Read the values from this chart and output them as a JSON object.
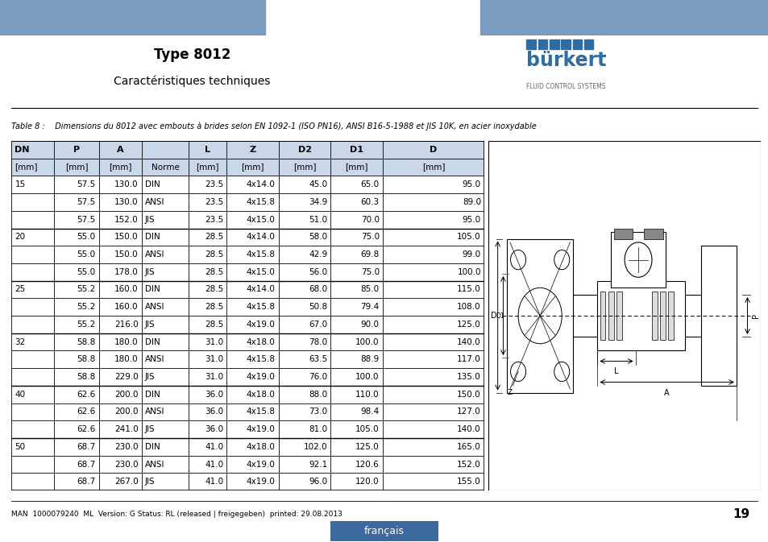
{
  "page_title": "Type 8012",
  "page_subtitle": "Caractéristiques techniques",
  "table_caption": "Table 8 :    Dimensions du 8012 avec embouts à brides selon EN 1092-1 (ISO PN16), ANSI B16-5-1988 et JIS 10K, en acier inoxydable",
  "col_headers": [
    "DN",
    "P",
    "A",
    "",
    "L",
    "Z",
    "D2",
    "D1",
    "D"
  ],
  "col_subheaders": [
    "[mm]",
    "[mm]",
    "[mm]",
    "Norme",
    "[mm]",
    "[mm]",
    "[mm]",
    "[mm]",
    "[mm]"
  ],
  "rows": [
    [
      "15",
      "57.5",
      "130.0",
      "DIN",
      "23.5",
      "4x14.0",
      "45.0",
      "65.0",
      "95.0"
    ],
    [
      "",
      "57.5",
      "130.0",
      "ANSI",
      "23.5",
      "4x15.8",
      "34.9",
      "60.3",
      "89.0"
    ],
    [
      "",
      "57.5",
      "152.0",
      "JIS",
      "23.5",
      "4x15.0",
      "51.0",
      "70.0",
      "95.0"
    ],
    [
      "20",
      "55.0",
      "150.0",
      "DIN",
      "28.5",
      "4x14.0",
      "58.0",
      "75.0",
      "105.0"
    ],
    [
      "",
      "55.0",
      "150.0",
      "ANSI",
      "28.5",
      "4x15.8",
      "42.9",
      "69.8",
      "99.0"
    ],
    [
      "",
      "55.0",
      "178.0",
      "JIS",
      "28.5",
      "4x15.0",
      "56.0",
      "75.0",
      "100.0"
    ],
    [
      "25",
      "55.2",
      "160.0",
      "DIN",
      "28.5",
      "4x14.0",
      "68.0",
      "85.0",
      "115.0"
    ],
    [
      "",
      "55.2",
      "160.0",
      "ANSI",
      "28.5",
      "4x15.8",
      "50.8",
      "79.4",
      "108.0"
    ],
    [
      "",
      "55.2",
      "216.0",
      "JIS",
      "28.5",
      "4x19.0",
      "67.0",
      "90.0",
      "125.0"
    ],
    [
      "32",
      "58.8",
      "180.0",
      "DIN",
      "31.0",
      "4x18.0",
      "78.0",
      "100.0",
      "140.0"
    ],
    [
      "",
      "58.8",
      "180.0",
      "ANSI",
      "31.0",
      "4x15.8",
      "63.5",
      "88.9",
      "117.0"
    ],
    [
      "",
      "58.8",
      "229.0",
      "JIS",
      "31.0",
      "4x19.0",
      "76.0",
      "100.0",
      "135.0"
    ],
    [
      "40",
      "62.6",
      "200.0",
      "DIN",
      "36.0",
      "4x18.0",
      "88.0",
      "110.0",
      "150.0"
    ],
    [
      "",
      "62.6",
      "200.0",
      "ANSI",
      "36.0",
      "4x15.8",
      "73.0",
      "98.4",
      "127.0"
    ],
    [
      "",
      "62.6",
      "241.0",
      "JIS",
      "36.0",
      "4x19.0",
      "81.0",
      "105.0",
      "140.0"
    ],
    [
      "50",
      "68.7",
      "230.0",
      "DIN",
      "41.0",
      "4x18.0",
      "102.0",
      "125.0",
      "165.0"
    ],
    [
      "",
      "68.7",
      "230.0",
      "ANSI",
      "41.0",
      "4x19.0",
      "92.1",
      "120.6",
      "152.0"
    ],
    [
      "",
      "68.7",
      "267.0",
      "JIS",
      "41.0",
      "4x19.0",
      "96.0",
      "120.0",
      "155.0"
    ]
  ],
  "header_bg": "#c8d8e8",
  "border_color": "#000000",
  "footer_text": "MAN  1000079240  ML  Version: G Status: RL (released | freigegeben)  printed: 29.08.2013",
  "page_number": "19",
  "lang_label": "français",
  "top_bar_color": "#7a9cc0",
  "burkert_blue": "#2e6da4",
  "dn_group_starts": [
    0,
    3,
    6,
    9,
    12,
    15
  ]
}
